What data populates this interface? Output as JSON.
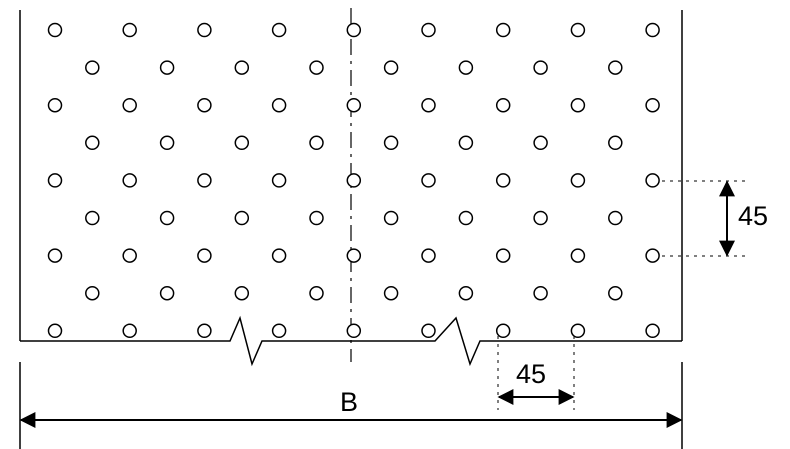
{
  "labels": {
    "vertical_spacing": "45",
    "horizontal_spacing": "45",
    "width": "B"
  },
  "pattern": {
    "rows_full": 5,
    "rows_offset": 4,
    "holes_per_full_row": 9,
    "holes_per_offset_row": 8
  }
}
